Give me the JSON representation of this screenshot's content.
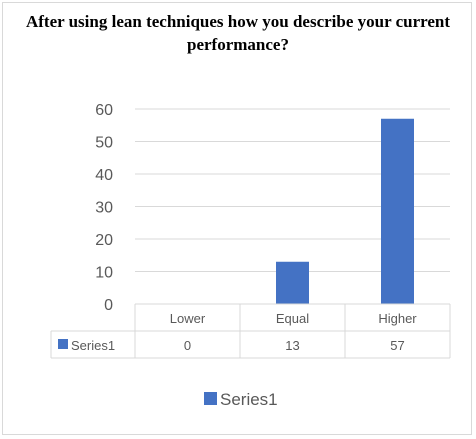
{
  "chart_data": {
    "type": "bar",
    "title": "After using lean techniques how you describe your current performance?",
    "categories": [
      "Lower",
      "Equal",
      "Higher"
    ],
    "series": [
      {
        "name": "Series1",
        "values": [
          0,
          13,
          57
        ],
        "color": "#4472c4"
      }
    ],
    "ylim": [
      0,
      60
    ],
    "yticks": [
      0,
      10,
      20,
      30,
      40,
      50,
      60
    ],
    "grid": true,
    "data_table": true,
    "legend": "bottom"
  }
}
